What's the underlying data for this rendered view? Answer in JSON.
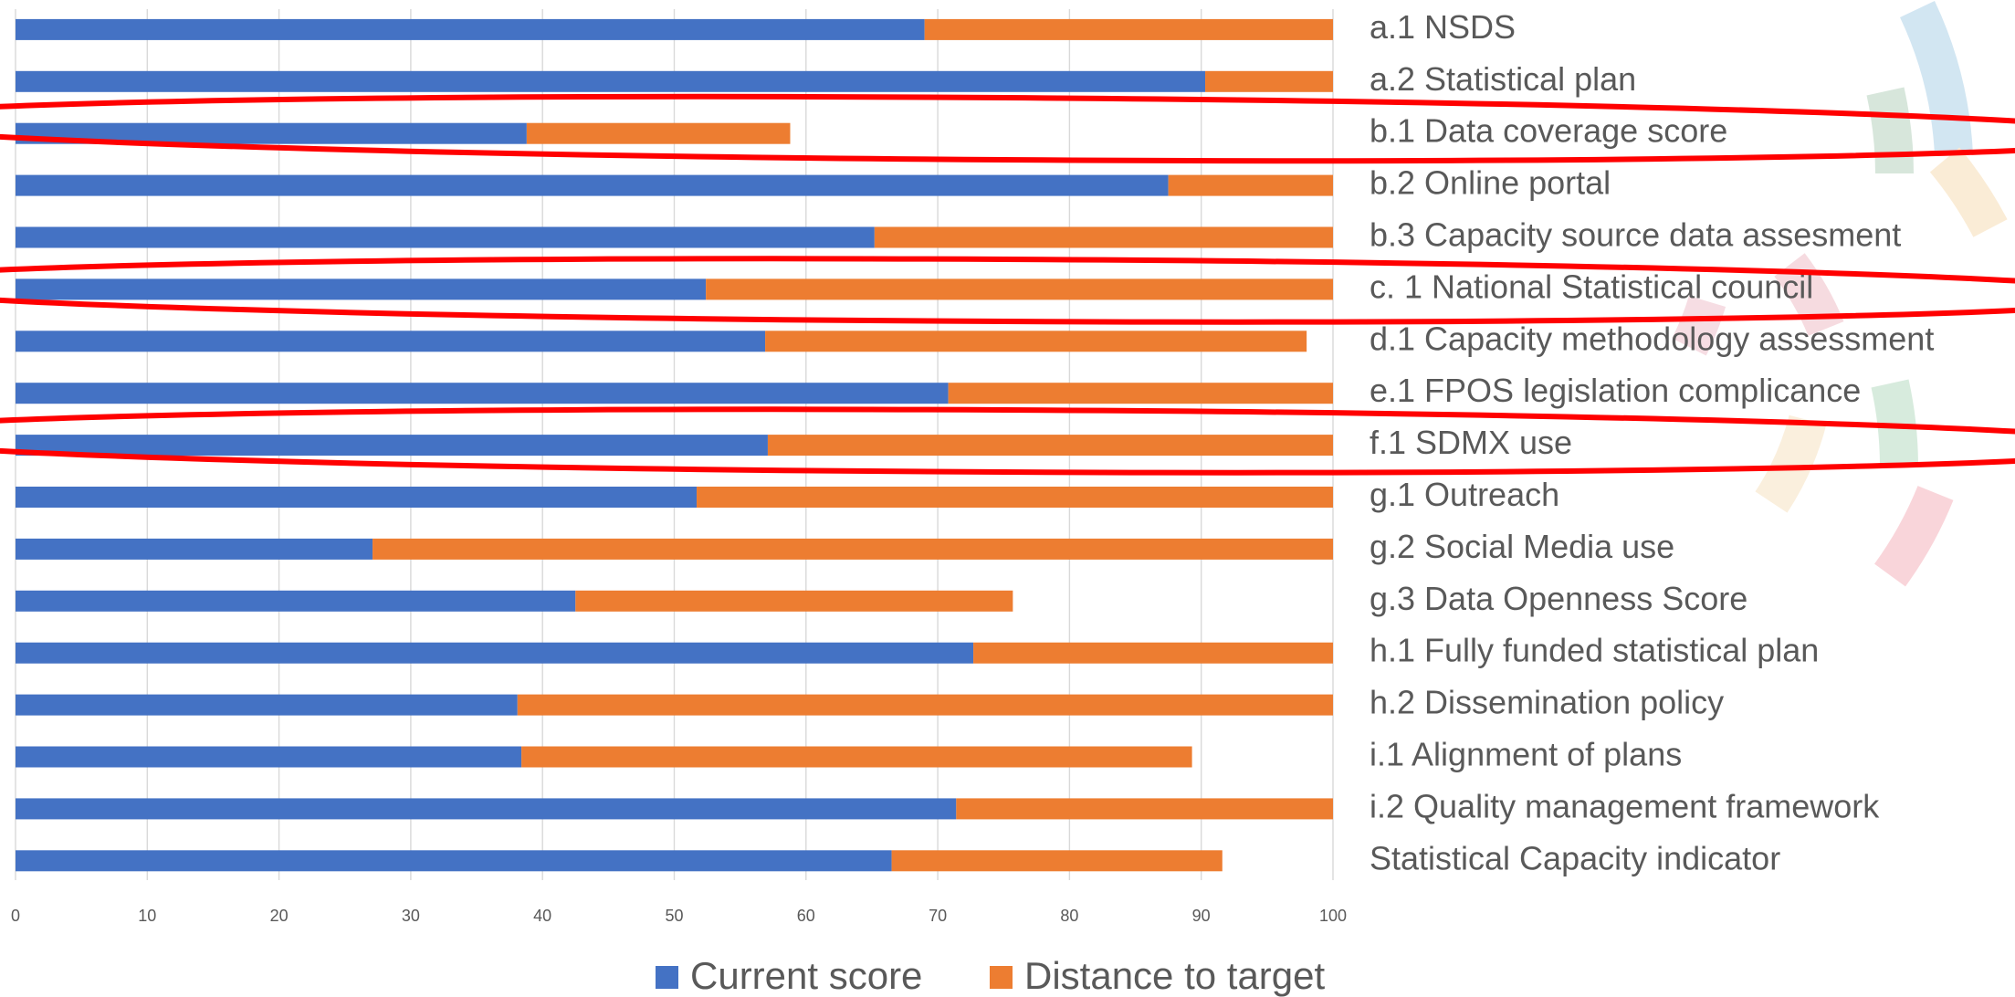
{
  "chart_data": {
    "type": "bar",
    "orientation": "horizontal",
    "stacked": true,
    "categories": [
      "a.1 NSDS",
      "a.2  Statistical plan",
      "b.1 Data coverage score",
      "b.2 Online portal",
      "b.3 Capacity source data assesment",
      "c. 1 National Statistical council",
      "d.1  Capacity methodology assessment",
      "e.1  FPOS legislation complicance",
      "f.1  SDMX use",
      "g.1 Outreach",
      "g.2 Social Media use",
      "g.3 Data Openness Score",
      "h.1 Fully funded statistical plan",
      "h.2 Dissemination policy",
      "i.1 Alignment of plans",
      "i.2 Quality management framework",
      "Statistical Capacity indicator"
    ],
    "series": [
      {
        "name": "Current score",
        "color": "#4472c4",
        "values": [
          69.0,
          90.3,
          38.8,
          87.5,
          65.2,
          52.4,
          56.9,
          70.8,
          57.1,
          51.7,
          27.1,
          42.5,
          72.7,
          38.1,
          38.4,
          71.4,
          66.5
        ]
      },
      {
        "name": "Distance to target",
        "color": "#ed7d31",
        "values": [
          31.0,
          9.7,
          20.0,
          12.5,
          34.8,
          47.6,
          41.1,
          29.2,
          42.9,
          48.3,
          72.9,
          33.2,
          27.3,
          61.9,
          50.9,
          28.6,
          25.1
        ]
      }
    ],
    "xlim": [
      0,
      100
    ],
    "xticks": [
      0,
      10,
      20,
      30,
      40,
      50,
      60,
      70,
      80,
      90,
      100
    ],
    "grid": true
  }
}
